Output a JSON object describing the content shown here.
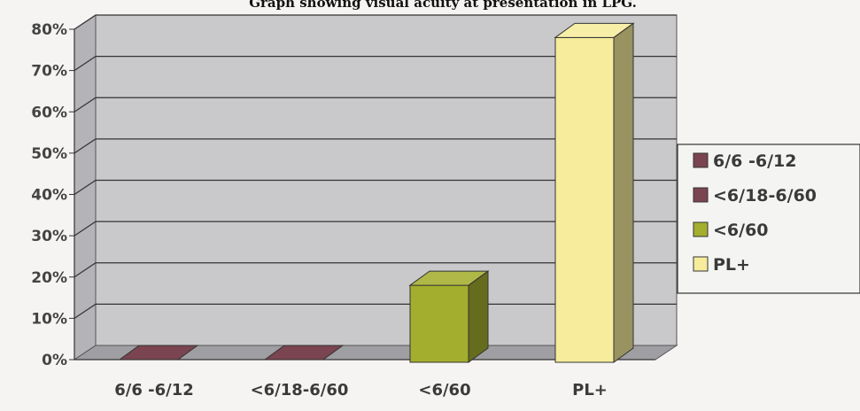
{
  "chart_data": {
    "type": "bar",
    "title": "Graph showing visual acuity at presentation in LPG.",
    "xlabel": "",
    "ylabel": "",
    "categories": [
      "6/6 -6/12",
      "<6/18-6/60",
      "<6/60",
      "PL+"
    ],
    "values": [
      0,
      0,
      18,
      78
    ],
    "value_unit": "%",
    "ylim": [
      0,
      80
    ],
    "yticks": [
      "0%",
      "10%",
      "20%",
      "30%",
      "40%",
      "50%",
      "60%",
      "70%",
      "80%"
    ],
    "grid": true,
    "three_d": true,
    "legend_position": "right",
    "legend": [
      {
        "label": "6/6 -6/12",
        "color": "#7a4450"
      },
      {
        "label": "<6/18-6/60",
        "color": "#7a4450"
      },
      {
        "label": "<6/60",
        "color": "#a4ae2e"
      },
      {
        "label": "PL+",
        "color": "#f6ec9c"
      }
    ],
    "colors": [
      "#7a4450",
      "#7a4450",
      "#a4ae2e",
      "#f6ec9c"
    ]
  }
}
